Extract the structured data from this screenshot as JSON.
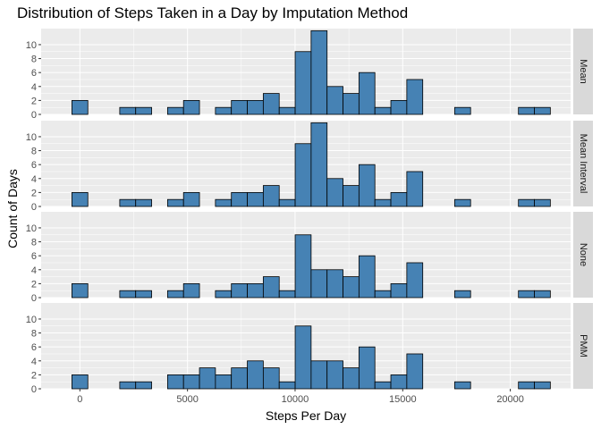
{
  "chart_data": {
    "type": "bar",
    "title": "Distribution of Steps Taken in a Day by Imputation Method",
    "xlabel": "Steps Per Day",
    "ylabel": "Count of Days",
    "xlim": [
      -1800,
      22800
    ],
    "ylim": [
      0,
      12.3
    ],
    "x_ticks": [
      0,
      5000,
      10000,
      15000,
      20000
    ],
    "y_ticks": [
      0,
      2,
      4,
      6,
      8,
      10
    ],
    "grid": true,
    "bin_width": 741,
    "bin_start": -371,
    "bar_color": "#4682B4",
    "panel_bg": "#EBEBEB",
    "strip_bg": "#D9D9D9",
    "facets": [
      {
        "label": "Mean",
        "counts": [
          2,
          0,
          0,
          1,
          1,
          0,
          1,
          2,
          0,
          1,
          2,
          2,
          3,
          1,
          9,
          12,
          4,
          3,
          6,
          1,
          2,
          5,
          0,
          0,
          1,
          0,
          0,
          0,
          1,
          1
        ]
      },
      {
        "label": "Mean Interval",
        "counts": [
          2,
          0,
          0,
          1,
          1,
          0,
          1,
          2,
          0,
          1,
          2,
          2,
          3,
          1,
          9,
          12,
          4,
          3,
          6,
          1,
          2,
          5,
          0,
          0,
          1,
          0,
          0,
          0,
          1,
          1
        ]
      },
      {
        "label": "None",
        "counts": [
          2,
          0,
          0,
          1,
          1,
          0,
          1,
          2,
          0,
          1,
          2,
          2,
          3,
          1,
          9,
          4,
          4,
          3,
          6,
          1,
          2,
          5,
          0,
          0,
          1,
          0,
          0,
          0,
          1,
          1
        ]
      },
      {
        "label": "PMM",
        "counts": [
          2,
          0,
          0,
          1,
          1,
          0,
          2,
          2,
          3,
          2,
          3,
          4,
          3,
          1,
          9,
          4,
          4,
          3,
          6,
          1,
          2,
          5,
          0,
          0,
          1,
          0,
          0,
          0,
          1,
          1
        ]
      }
    ]
  }
}
